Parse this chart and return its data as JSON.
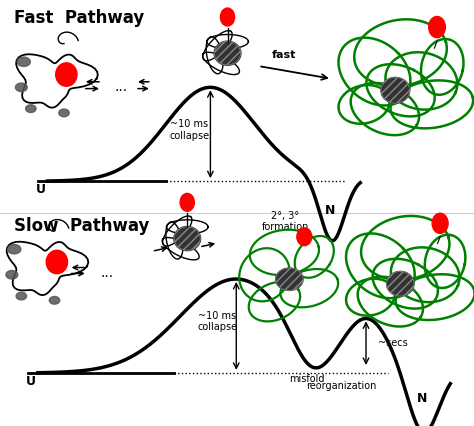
{
  "fig_width": 4.74,
  "fig_height": 4.26,
  "dpi": 100,
  "title_fast": "Fast  Pathway",
  "title_slow": "Slow  Pathway",
  "title_fontsize": 12,
  "title_fontweight": "bold",
  "label_U_fast": "U",
  "label_N_fast": "N",
  "label_10ms_fast": "~10 ms\ncollapse",
  "label_fast_word": "fast",
  "label_23_fast": "2°, 3°\nformation",
  "label_U_slow": "U",
  "label_N_slow": "N",
  "label_10ms_slow": "~10 ms\ncollapse",
  "label_misfold": "misfold",
  "label_secs": "~secs",
  "label_reorg": "reorganization",
  "annotation_fontsize": 7,
  "axis_label_fontsize": 9,
  "curve_lw": 2.5
}
